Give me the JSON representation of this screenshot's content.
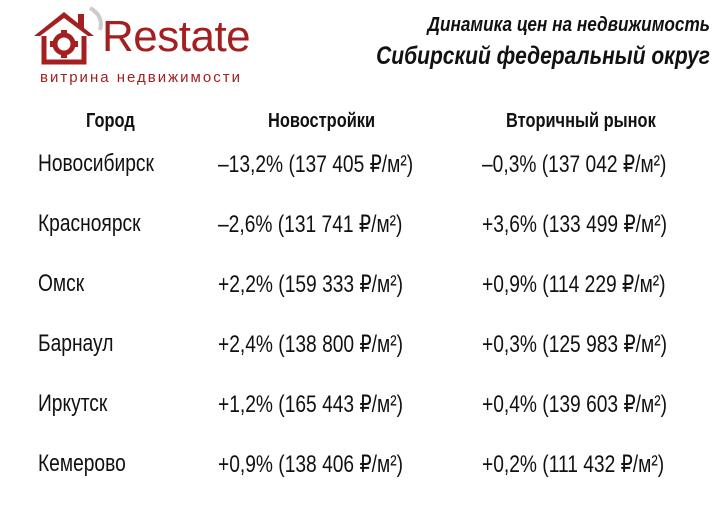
{
  "logo": {
    "brand": "Restate",
    "tagline": "витрина недвижимости"
  },
  "title": {
    "line1": "Динамика цен на недвижимость",
    "line2": "Сибирский федеральный округ"
  },
  "table": {
    "headers": [
      "Город",
      "Новостройки",
      "Вторичный рынок"
    ],
    "rows": [
      {
        "city": "Новосибирск",
        "new": "–13,2% (137 405 ₽/м²)",
        "secondary": "–0,3% (137 042 ₽/м²)"
      },
      {
        "city": "Красноярск",
        "new": "–2,6% (131 741 ₽/м²)",
        "secondary": "+3,6% (133 499 ₽/м²)"
      },
      {
        "city": "Омск",
        "new": "+2,2% (159 333 ₽/м²)",
        "secondary": "+0,9% (114 229 ₽/м²)"
      },
      {
        "city": "Барнаул",
        "new": "+2,4% (138 800 ₽/м²)",
        "secondary": "+0,3% (125 983 ₽/м²)"
      },
      {
        "city": "Иркутск",
        "new": "+1,2% (165 443 ₽/м²)",
        "secondary": "+0,4% (139 603 ₽/м²)"
      },
      {
        "city": "Кемерово",
        "new": "+0,9% (138 406 ₽/м²)",
        "secondary": "+0,2% (111 432 ₽/м²)"
      }
    ]
  },
  "colors": {
    "brand": "#a42020",
    "text": "#111111"
  },
  "icons": [
    "house-gear-logo-icon"
  ]
}
